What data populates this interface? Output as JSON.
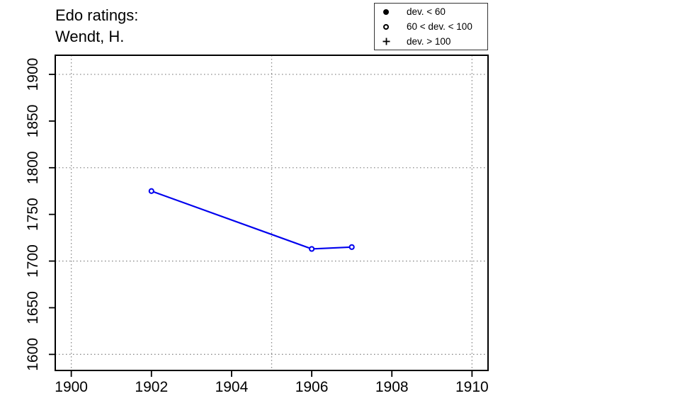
{
  "chart_data": {
    "type": "line",
    "title_lines": [
      "Edo ratings:",
      "Wendt, H."
    ],
    "series": [
      {
        "name": "Wendt, H.",
        "marker": "open-circle",
        "color": "#0000EE",
        "points": [
          {
            "x": 1902,
            "y": 1775
          },
          {
            "x": 1906,
            "y": 1713
          },
          {
            "x": 1907,
            "y": 1715
          }
        ]
      }
    ],
    "xlabel": "",
    "ylabel": "",
    "xlim": [
      1899.6,
      1910.4
    ],
    "ylim": [
      1582.8,
      1920.5
    ],
    "xticks": [
      "1900",
      "1902",
      "1904",
      "1906",
      "1908",
      "1910"
    ],
    "yticks": [
      "1600",
      "1650",
      "1700",
      "1750",
      "1800",
      "1850",
      "1900"
    ],
    "grid": {
      "style": "dotted",
      "color": "#8a8a8a",
      "x_at": [
        1900,
        1905,
        1910
      ],
      "y_at": [
        1600,
        1700,
        1800,
        1900
      ]
    },
    "legend": {
      "position": "top-right",
      "items": [
        {
          "symbol": "filled-circle",
          "label": "dev. < 60"
        },
        {
          "symbol": "open-circle",
          "label": "60 < dev. < 100"
        },
        {
          "symbol": "plus",
          "label": "dev. > 100"
        }
      ]
    },
    "colors": {
      "series": "#0000EE",
      "axis": "#000000",
      "grid": "#8a8a8a",
      "text": "#000000"
    }
  }
}
